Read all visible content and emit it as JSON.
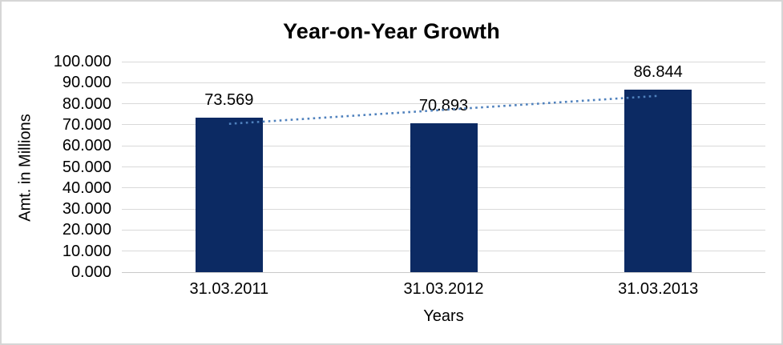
{
  "chart_data": {
    "type": "bar",
    "title": "Year-on-Year Growth",
    "xlabel": "Years",
    "ylabel": "Amt. in Millions",
    "categories": [
      "31.03.2011",
      "31.03.2012",
      "31.03.2013"
    ],
    "values": [
      73.569,
      70.893,
      86.844
    ],
    "value_labels": [
      "73.569",
      "70.893",
      "86.844"
    ],
    "ylim": [
      0,
      100
    ],
    "ytick_step": 10,
    "ytick_labels": [
      "0.000",
      "10.000",
      "20.000",
      "30.000",
      "40.000",
      "50.000",
      "60.000",
      "70.000",
      "80.000",
      "90.000",
      "100.000"
    ],
    "grid": true,
    "legend_position": "none",
    "bar_color": "#0c2a63",
    "gridline_color": "#d9d9d9",
    "trendline": {
      "type": "linear",
      "style": "dotted",
      "color": "#4f81bd",
      "start_value": 70.46,
      "end_value": 83.74
    }
  }
}
